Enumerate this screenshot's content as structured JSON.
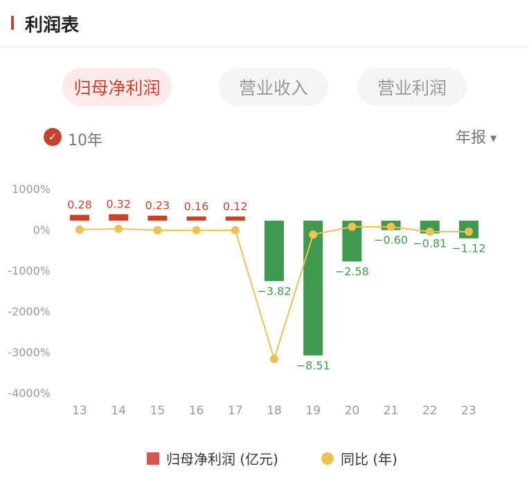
{
  "header": {
    "title": "利润表"
  },
  "tabs": [
    {
      "label": "归母净利润",
      "active": true
    },
    {
      "label": "营业收入",
      "active": false
    },
    {
      "label": "营业利润",
      "active": false
    }
  ],
  "filter": {
    "years_label": "10年",
    "checked": true,
    "period_label": "年报"
  },
  "legend": {
    "bar": "归母净利润 (亿元)",
    "line": "同比 (年)"
  },
  "colors": {
    "positive": "#c8412b",
    "negative": "#3f9a4f",
    "line": "#f0c050",
    "accent": "#c8412b"
  },
  "chart_data": {
    "type": "bar+line",
    "categories": [
      "13",
      "14",
      "15",
      "16",
      "17",
      "18",
      "19",
      "20",
      "21",
      "22",
      "23"
    ],
    "series": [
      {
        "name": "归母净利润 (亿元)",
        "type": "bar",
        "values": [
          0.28,
          0.32,
          0.23,
          0.16,
          0.12,
          -3.82,
          -8.51,
          -2.58,
          -0.6,
          -0.81,
          -1.12
        ],
        "labels": [
          "0.28",
          "0.32",
          "0.23",
          "0.16",
          "0.12",
          "−3.82",
          "−8.51",
          "−2.58",
          "−0.60",
          "−0.81",
          "−1.12"
        ]
      },
      {
        "name": "同比 (年)",
        "type": "line",
        "values": [
          0,
          20,
          -15,
          -15,
          -15,
          -3170,
          -120,
          70,
          70,
          -50,
          -50
        ]
      }
    ],
    "y_ticks": [
      "1000%",
      "0%",
      "-1000%",
      "-2000%",
      "-3000%",
      "-4000%"
    ],
    "ylim_line": [
      -4000,
      1000
    ],
    "grid": false,
    "legend_position": "bottom"
  }
}
